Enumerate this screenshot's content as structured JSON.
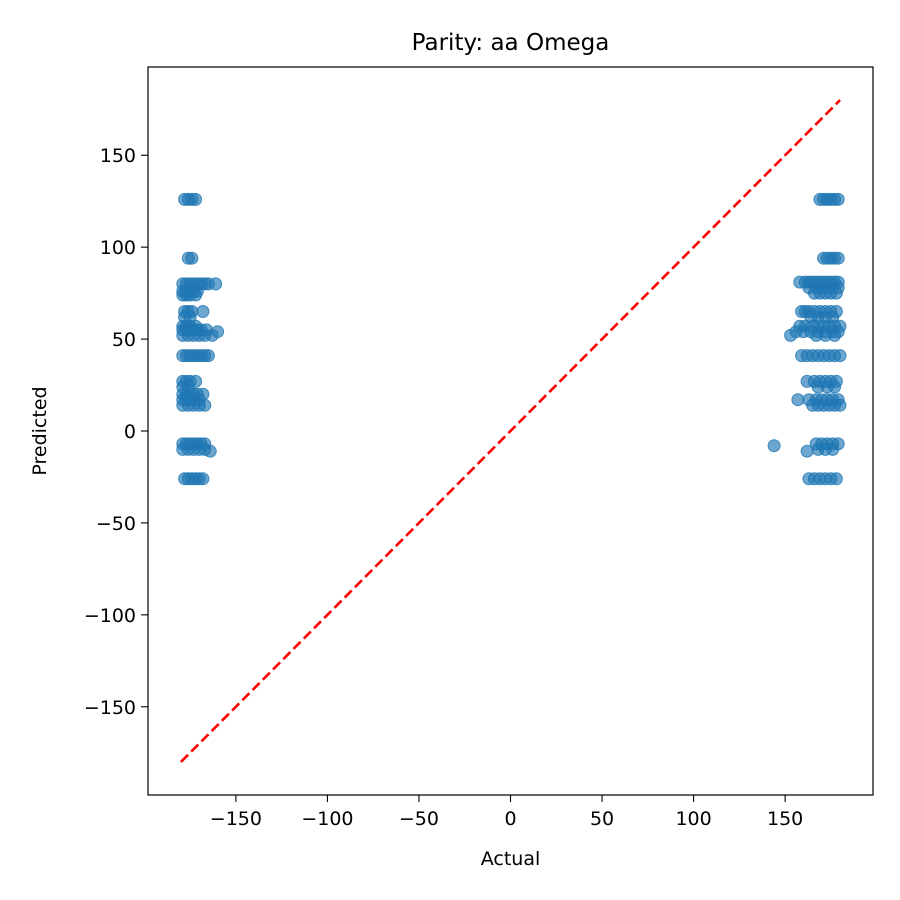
{
  "chart_data": {
    "type": "scatter",
    "title": "Parity: aa Omega",
    "xlabel": "Actual",
    "ylabel": "Predicted",
    "xlim": [
      -198,
      198
    ],
    "ylim": [
      -198,
      198
    ],
    "xticks": [
      -150,
      -100,
      -50,
      0,
      50,
      100,
      150
    ],
    "yticks": [
      -150,
      -100,
      -50,
      0,
      50,
      100,
      150
    ],
    "xtick_labels": [
      "−150",
      "−100",
      "−50",
      "0",
      "50",
      "100",
      "150"
    ],
    "ytick_labels": [
      "−150",
      "−100",
      "−50",
      "0",
      "50",
      "100",
      "150"
    ],
    "grid": false,
    "marker_color": "#1f77b4",
    "marker_alpha": 0.65,
    "reference_line": {
      "from": [
        -180,
        -180
      ],
      "to": [
        180,
        180
      ],
      "color": "#ff0000",
      "style": "dashed"
    },
    "points": [
      [
        -178,
        126
      ],
      [
        -176,
        126
      ],
      [
        -174,
        126
      ],
      [
        -172,
        126
      ],
      [
        -176,
        94
      ],
      [
        -174,
        94
      ],
      [
        -179,
        80
      ],
      [
        -177,
        80
      ],
      [
        -175,
        80
      ],
      [
        -173,
        80
      ],
      [
        -171,
        80
      ],
      [
        -169,
        80
      ],
      [
        -167,
        80
      ],
      [
        -165,
        80
      ],
      [
        -161,
        80
      ],
      [
        -179,
        76
      ],
      [
        -177,
        76
      ],
      [
        -175,
        76
      ],
      [
        -173,
        76
      ],
      [
        -171,
        76
      ],
      [
        -179,
        74
      ],
      [
        -177,
        74
      ],
      [
        -175,
        74
      ],
      [
        -172,
        74
      ],
      [
        -178,
        65
      ],
      [
        -176,
        65
      ],
      [
        -174,
        65
      ],
      [
        -168,
        65
      ],
      [
        -178,
        62
      ],
      [
        -175,
        62
      ],
      [
        -179,
        57
      ],
      [
        -177,
        57
      ],
      [
        -175,
        57
      ],
      [
        -172,
        57
      ],
      [
        -179,
        55
      ],
      [
        -177,
        55
      ],
      [
        -175,
        55
      ],
      [
        -173,
        55
      ],
      [
        -171,
        55
      ],
      [
        -169,
        55
      ],
      [
        -166,
        55
      ],
      [
        -160,
        54
      ],
      [
        -179,
        52
      ],
      [
        -176,
        52
      ],
      [
        -173,
        52
      ],
      [
        -170,
        52
      ],
      [
        -167,
        52
      ],
      [
        -163,
        52
      ],
      [
        -179,
        41
      ],
      [
        -177,
        41
      ],
      [
        -175,
        41
      ],
      [
        -173,
        41
      ],
      [
        -171,
        41
      ],
      [
        -169,
        41
      ],
      [
        -167,
        41
      ],
      [
        -165,
        41
      ],
      [
        -179,
        27
      ],
      [
        -177,
        27
      ],
      [
        -175,
        27
      ],
      [
        -172,
        27
      ],
      [
        -179,
        24
      ],
      [
        -176,
        24
      ],
      [
        -179,
        20
      ],
      [
        -177,
        20
      ],
      [
        -175,
        20
      ],
      [
        -173,
        20
      ],
      [
        -171,
        20
      ],
      [
        -168,
        20
      ],
      [
        -179,
        17
      ],
      [
        -177,
        17
      ],
      [
        -175,
        17
      ],
      [
        -173,
        17
      ],
      [
        -170,
        17
      ],
      [
        -179,
        14
      ],
      [
        -176,
        14
      ],
      [
        -173,
        14
      ],
      [
        -170,
        14
      ],
      [
        -167,
        14
      ],
      [
        -179,
        -7
      ],
      [
        -177,
        -7
      ],
      [
        -175,
        -7
      ],
      [
        -173,
        -7
      ],
      [
        -171,
        -7
      ],
      [
        -169,
        -7
      ],
      [
        -167,
        -7
      ],
      [
        -179,
        -10
      ],
      [
        -176,
        -10
      ],
      [
        -173,
        -10
      ],
      [
        -170,
        -10
      ],
      [
        -167,
        -10
      ],
      [
        -164,
        -11
      ],
      [
        -178,
        -26
      ],
      [
        -176,
        -26
      ],
      [
        -174,
        -26
      ],
      [
        -172,
        -26
      ],
      [
        -170,
        -26
      ],
      [
        -168,
        -26
      ],
      [
        169,
        126
      ],
      [
        171,
        126
      ],
      [
        173,
        126
      ],
      [
        175,
        126
      ],
      [
        177,
        126
      ],
      [
        179,
        126
      ],
      [
        171,
        94
      ],
      [
        173,
        94
      ],
      [
        175,
        94
      ],
      [
        177,
        94
      ],
      [
        179,
        94
      ],
      [
        158,
        81
      ],
      [
        161,
        81
      ],
      [
        163,
        81
      ],
      [
        165,
        81
      ],
      [
        167,
        81
      ],
      [
        169,
        81
      ],
      [
        171,
        81
      ],
      [
        173,
        81
      ],
      [
        175,
        81
      ],
      [
        177,
        81
      ],
      [
        179,
        81
      ],
      [
        163,
        78
      ],
      [
        167,
        78
      ],
      [
        170,
        78
      ],
      [
        173,
        78
      ],
      [
        176,
        78
      ],
      [
        179,
        78
      ],
      [
        166,
        75
      ],
      [
        169,
        75
      ],
      [
        172,
        75
      ],
      [
        175,
        75
      ],
      [
        178,
        75
      ],
      [
        159,
        65
      ],
      [
        161,
        65
      ],
      [
        163,
        65
      ],
      [
        166,
        65
      ],
      [
        169,
        65
      ],
      [
        172,
        65
      ],
      [
        175,
        65
      ],
      [
        178,
        65
      ],
      [
        164,
        62
      ],
      [
        168,
        62
      ],
      [
        172,
        62
      ],
      [
        176,
        62
      ],
      [
        158,
        57
      ],
      [
        161,
        57
      ],
      [
        165,
        57
      ],
      [
        168,
        57
      ],
      [
        171,
        57
      ],
      [
        174,
        57
      ],
      [
        177,
        57
      ],
      [
        180,
        57
      ],
      [
        156,
        54
      ],
      [
        160,
        54
      ],
      [
        164,
        54
      ],
      [
        168,
        54
      ],
      [
        172,
        54
      ],
      [
        176,
        54
      ],
      [
        179,
        54
      ],
      [
        153,
        52
      ],
      [
        167,
        52
      ],
      [
        172,
        52
      ],
      [
        177,
        52
      ],
      [
        159,
        41
      ],
      [
        162,
        41
      ],
      [
        165,
        41
      ],
      [
        168,
        41
      ],
      [
        171,
        41
      ],
      [
        174,
        41
      ],
      [
        177,
        41
      ],
      [
        180,
        41
      ],
      [
        162,
        27
      ],
      [
        166,
        27
      ],
      [
        169,
        27
      ],
      [
        172,
        27
      ],
      [
        175,
        27
      ],
      [
        178,
        27
      ],
      [
        168,
        24
      ],
      [
        173,
        24
      ],
      [
        177,
        24
      ],
      [
        157,
        17
      ],
      [
        163,
        17
      ],
      [
        167,
        17
      ],
      [
        170,
        17
      ],
      [
        173,
        17
      ],
      [
        176,
        17
      ],
      [
        179,
        17
      ],
      [
        165,
        14
      ],
      [
        168,
        14
      ],
      [
        171,
        14
      ],
      [
        174,
        14
      ],
      [
        177,
        14
      ],
      [
        180,
        14
      ],
      [
        144,
        -8
      ],
      [
        167,
        -7
      ],
      [
        170,
        -7
      ],
      [
        173,
        -7
      ],
      [
        176,
        -7
      ],
      [
        179,
        -7
      ],
      [
        168,
        -10
      ],
      [
        172,
        -10
      ],
      [
        176,
        -10
      ],
      [
        162,
        -11
      ],
      [
        163,
        -26
      ],
      [
        166,
        -26
      ],
      [
        169,
        -26
      ],
      [
        172,
        -26
      ],
      [
        175,
        -26
      ],
      [
        178,
        -26
      ]
    ]
  }
}
